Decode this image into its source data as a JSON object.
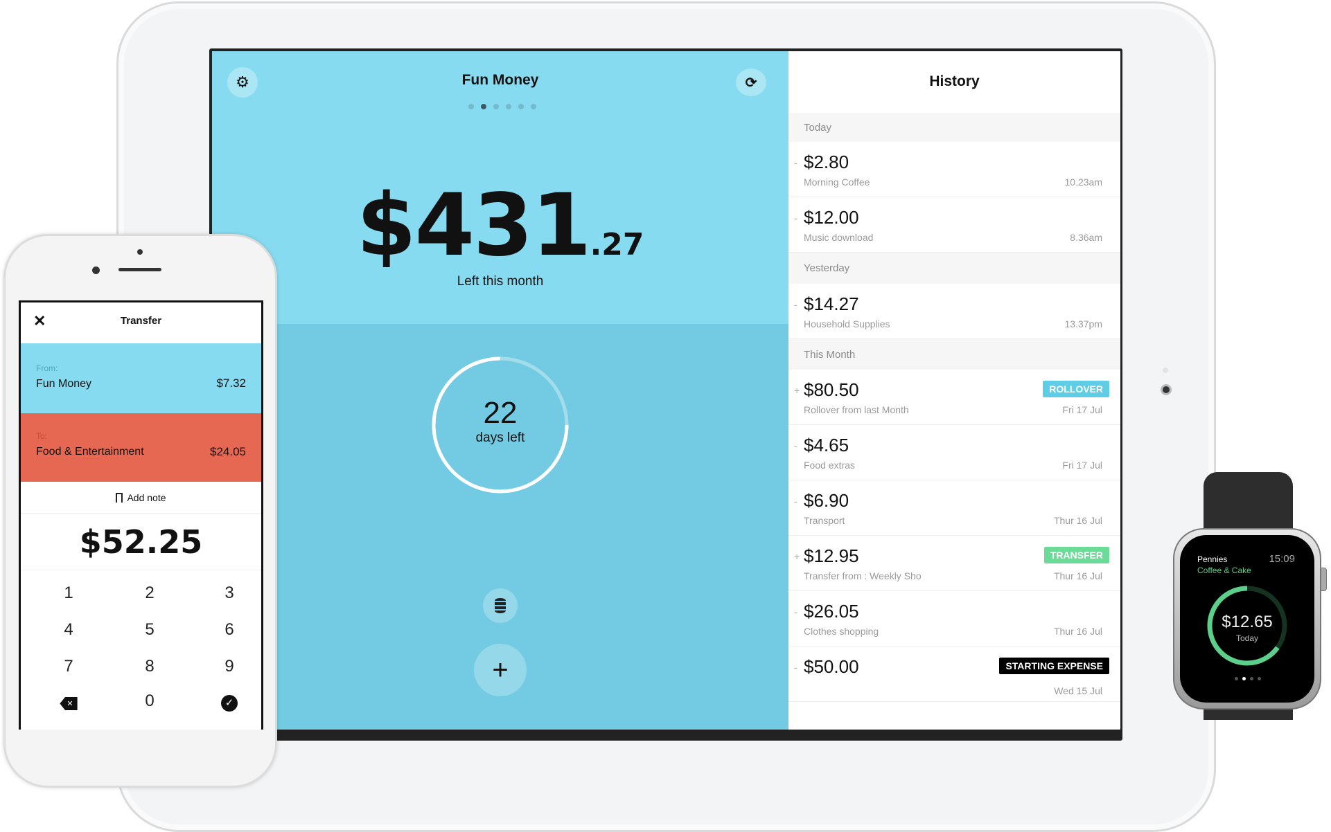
{
  "ipad": {
    "left_pane": {
      "title": "Fun Money",
      "page_dots": 6,
      "active_dot": 1,
      "balance_main": "$431",
      "balance_cents": ".27",
      "balance_label": "Left this month",
      "days_left": "22",
      "days_left_label": "days left",
      "days_ring_fraction": 0.75,
      "icons": {
        "settings": "gear-icon",
        "sync": "refresh-icon",
        "coins": "coin-stack-icon",
        "add": "plus-icon"
      }
    },
    "history": {
      "title": "History",
      "sections": [
        {
          "label": "Today",
          "items": [
            {
              "sign": "-",
              "amount": "$2.80",
              "description": "Morning Coffee",
              "when": "10.23am"
            },
            {
              "sign": "-",
              "amount": "$12.00",
              "description": "Music download",
              "when": "8.36am"
            }
          ]
        },
        {
          "label": "Yesterday",
          "items": [
            {
              "sign": "-",
              "amount": "$14.27",
              "description": "Household Supplies",
              "when": "13.37pm"
            }
          ]
        },
        {
          "label": "This Month",
          "items": [
            {
              "sign": "+",
              "amount": "$80.50",
              "description": "Rollover from last Month",
              "when": "Fri 17 Jul",
              "badge": "ROLLOVER",
              "badge_color": "#5fcde6"
            },
            {
              "sign": "-",
              "amount": "$4.65",
              "description": "Food extras",
              "when": "Fri 17 Jul"
            },
            {
              "sign": "-",
              "amount": "$6.90",
              "description": "Transport",
              "when": "Thur 16 Jul"
            },
            {
              "sign": "+",
              "amount": "$12.95",
              "description": "Transfer from : Weekly Sho",
              "when": "Thur 16 Jul",
              "badge": "TRANSFER",
              "badge_color": "#6bdc97"
            },
            {
              "sign": "-",
              "amount": "$26.05",
              "description": "Clothes shopping",
              "when": "Thur 16 Jul"
            },
            {
              "sign": "-",
              "amount": "$50.00",
              "description": "",
              "when": "Wed 15 Jul",
              "badge": "STARTING EXPENSE",
              "badge_color": "#000000"
            }
          ]
        }
      ]
    }
  },
  "phone": {
    "title": "Transfer",
    "from_label": "From:",
    "from_name": "Fun Money",
    "from_amount": "$7.32",
    "to_label": "To:",
    "to_name": "Food & Entertainment",
    "to_amount": "$24.05",
    "add_note": "Add note",
    "amount": "$52.25",
    "keys": [
      "1",
      "2",
      "3",
      "4",
      "5",
      "6",
      "7",
      "8",
      "9",
      "backspace-icon",
      "0",
      "check-icon"
    ],
    "colors": {
      "from": "#87dbf0",
      "to": "#e66852"
    }
  },
  "watch": {
    "app": "Pennies",
    "time": "15:09",
    "category": "Coffee & Cake",
    "amount": "$12.65",
    "amount_label": "Today",
    "ring_fraction": 0.65,
    "page_dots": 4,
    "active_dot": 1,
    "accent": "#5ccf8a"
  }
}
